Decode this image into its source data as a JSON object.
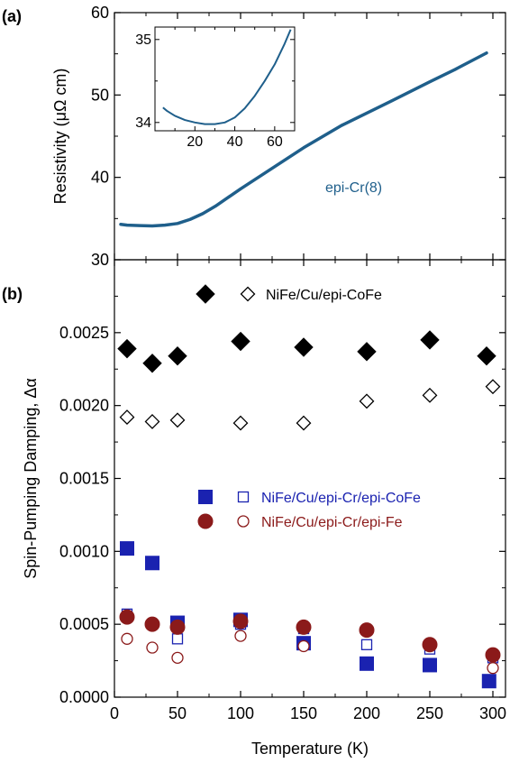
{
  "panel_a_label": "(a)",
  "panel_b_label": "(b)",
  "chart_data": [
    {
      "type": "line",
      "panel": "(a)",
      "ylabel": "Resistivity (μΩ cm)",
      "xlim": [
        0,
        310
      ],
      "ylim": [
        30,
        60
      ],
      "yticks": [
        30,
        40,
        50,
        60
      ],
      "xticks": [
        0,
        50,
        100,
        150,
        200,
        250,
        300
      ],
      "annotation": "epi-Cr(8)",
      "series": [
        {
          "name": "epi-Cr(8)",
          "color": "#1f5f8b",
          "x": [
            5,
            10,
            20,
            30,
            40,
            50,
            60,
            70,
            80,
            100,
            120,
            150,
            180,
            200,
            220,
            250,
            270,
            295
          ],
          "y": [
            34.3,
            34.2,
            34.15,
            34.1,
            34.2,
            34.4,
            34.9,
            35.6,
            36.5,
            38.6,
            40.6,
            43.6,
            46.3,
            47.8,
            49.3,
            51.6,
            53.1,
            55.1
          ]
        }
      ],
      "inset": {
        "xlim": [
          0,
          70
        ],
        "ylim": [
          33.9,
          35.15
        ],
        "xticks": [
          20,
          40,
          60
        ],
        "yticks": [
          34,
          35
        ],
        "x": [
          4,
          6,
          10,
          15,
          20,
          25,
          30,
          35,
          40,
          45,
          50,
          55,
          60,
          65,
          68
        ],
        "y": [
          34.18,
          34.14,
          34.08,
          34.03,
          34.0,
          33.98,
          33.98,
          34.0,
          34.06,
          34.17,
          34.32,
          34.5,
          34.7,
          34.95,
          35.12
        ]
      }
    },
    {
      "type": "scatter",
      "panel": "(b)",
      "xlabel": "Temperature (K)",
      "ylabel": "Spin-Pumping Damping, Δα",
      "xlim": [
        0,
        310
      ],
      "ylim": [
        0,
        0.003
      ],
      "yticks": [
        "0.0000",
        "0.0005",
        "0.0010",
        "0.0015",
        "0.0020",
        "0.0025"
      ],
      "ytick_values": [
        0,
        0.0005,
        0.001,
        0.0015,
        0.002,
        0.0025
      ],
      "xticks": [
        0,
        50,
        100,
        150,
        200,
        250,
        300
      ],
      "legend_top": {
        "label": "NiFe/Cu/epi-CoFe",
        "color": "#000000"
      },
      "legend_bottom": [
        {
          "label": "NiFe/Cu/epi-Cr/epi-CoFe",
          "color": "#1a22b0"
        },
        {
          "label": "NiFe/Cu/epi-Cr/epi-Fe",
          "color": "#8b1a1a"
        }
      ],
      "series": [
        {
          "name": "NiFe/Cu/epi-CoFe",
          "marker": "diamond-filled",
          "color": "#000000",
          "x": [
            10,
            30,
            50,
            100,
            150,
            200,
            250,
            295
          ],
          "y": [
            0.00239,
            0.00229,
            0.00234,
            0.00244,
            0.0024,
            0.00237,
            0.00245,
            0.00234
          ]
        },
        {
          "name": "NiFe/Cu/epi-CoFe",
          "marker": "diamond-open",
          "color": "#000000",
          "x": [
            10,
            30,
            50,
            100,
            150,
            200,
            250,
            300
          ],
          "y": [
            0.00192,
            0.00189,
            0.0019,
            0.00188,
            0.00188,
            0.00203,
            0.00207,
            0.00213
          ]
        },
        {
          "name": "NiFe/Cu/epi-Cr/epi-CoFe",
          "marker": "square-filled",
          "color": "#1a22b0",
          "x": [
            10,
            30,
            50,
            100,
            150,
            200,
            250,
            297
          ],
          "y": [
            0.00102,
            0.00092,
            0.00051,
            0.00053,
            0.00037,
            0.00023,
            0.00022,
            0.00011
          ]
        },
        {
          "name": "NiFe/Cu/epi-Cr/epi-CoFe",
          "marker": "square-open",
          "color": "#1a22b0",
          "x": [
            10,
            50,
            100,
            150,
            200,
            250,
            300
          ],
          "y": [
            0.00057,
            0.0004,
            0.0005,
            0.00047,
            0.00036,
            0.00033,
            0.00027
          ]
        },
        {
          "name": "NiFe/Cu/epi-Cr/epi-Fe",
          "marker": "circle-filled",
          "color": "#8b1a1a",
          "x": [
            10,
            30,
            50,
            100,
            150,
            200,
            250,
            300
          ],
          "y": [
            0.00055,
            0.0005,
            0.00048,
            0.00052,
            0.00048,
            0.00046,
            0.00036,
            0.00029
          ]
        },
        {
          "name": "NiFe/Cu/epi-Cr/epi-Fe",
          "marker": "circle-open",
          "color": "#8b1a1a",
          "x": [
            10,
            30,
            50,
            100,
            150,
            300
          ],
          "y": [
            0.0004,
            0.00034,
            0.00027,
            0.00042,
            0.00035,
            0.0002
          ]
        }
      ]
    }
  ]
}
